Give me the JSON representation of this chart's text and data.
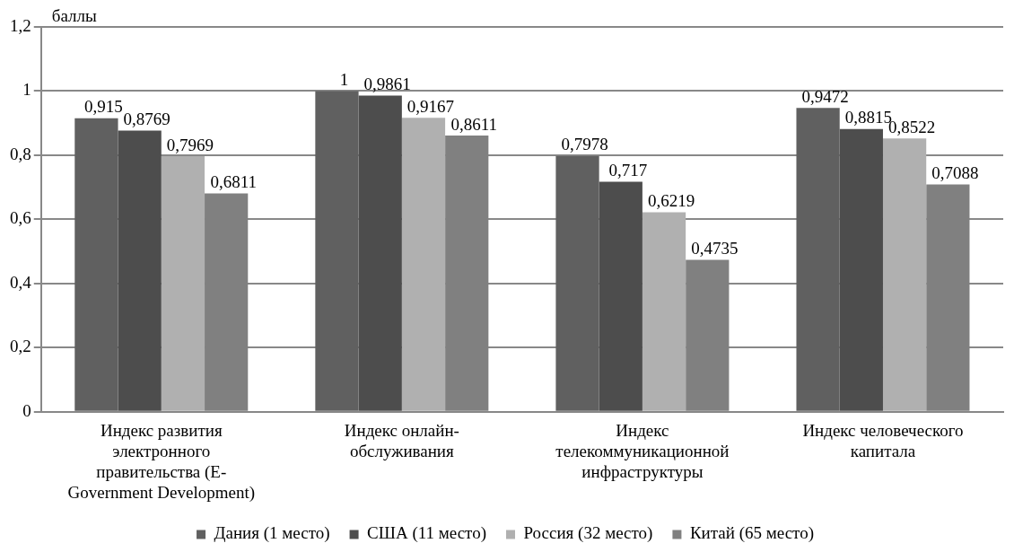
{
  "chart_data": {
    "type": "bar",
    "ylabel": "баллы",
    "categories": [
      "Индекс развития электронного правительства (E-Government Development)",
      "Индекс онлайн-обслуживания",
      "Индекс телекоммуникационной инфраструктуры",
      "Индекс человеческого капитала"
    ],
    "series": [
      {
        "name": "Дания (1 место)",
        "color": "#606060",
        "values": [
          0.915,
          1,
          0.7978,
          0.9472
        ],
        "value_labels": [
          "0,915",
          "1",
          "0,7978",
          "0,9472"
        ]
      },
      {
        "name": "США (11 место)",
        "color": "#4d4d4d",
        "values": [
          0.8769,
          0.9861,
          0.717,
          0.8815
        ],
        "value_labels": [
          "0,8769",
          "0,9861",
          "0,717",
          "0,8815"
        ]
      },
      {
        "name": "Россия (32 место)",
        "color": "#b0b0b0",
        "values": [
          0.7969,
          0.9167,
          0.6219,
          0.8522
        ],
        "value_labels": [
          "0,7969",
          "0,9167",
          "0,6219",
          "0,8522"
        ]
      },
      {
        "name": "Китай (65 место)",
        "color": "#808080",
        "values": [
          0.6811,
          0.8611,
          0.4735,
          0.7088
        ],
        "value_labels": [
          "0,6811",
          "0,8611",
          "0,4735",
          "0,7088"
        ]
      }
    ],
    "ylim": [
      0,
      1.2
    ],
    "yticks": [
      0,
      {
        "value": 0.2,
        "label": "0,2"
      },
      {
        "value": 0.4,
        "label": "0,4"
      },
      {
        "value": 0.6,
        "label": "0,6"
      },
      {
        "value": 0.8,
        "label": "0,8"
      },
      1,
      {
        "value": 1.2,
        "label": "1,2"
      }
    ],
    "grid": "y",
    "legend": "bottom"
  }
}
